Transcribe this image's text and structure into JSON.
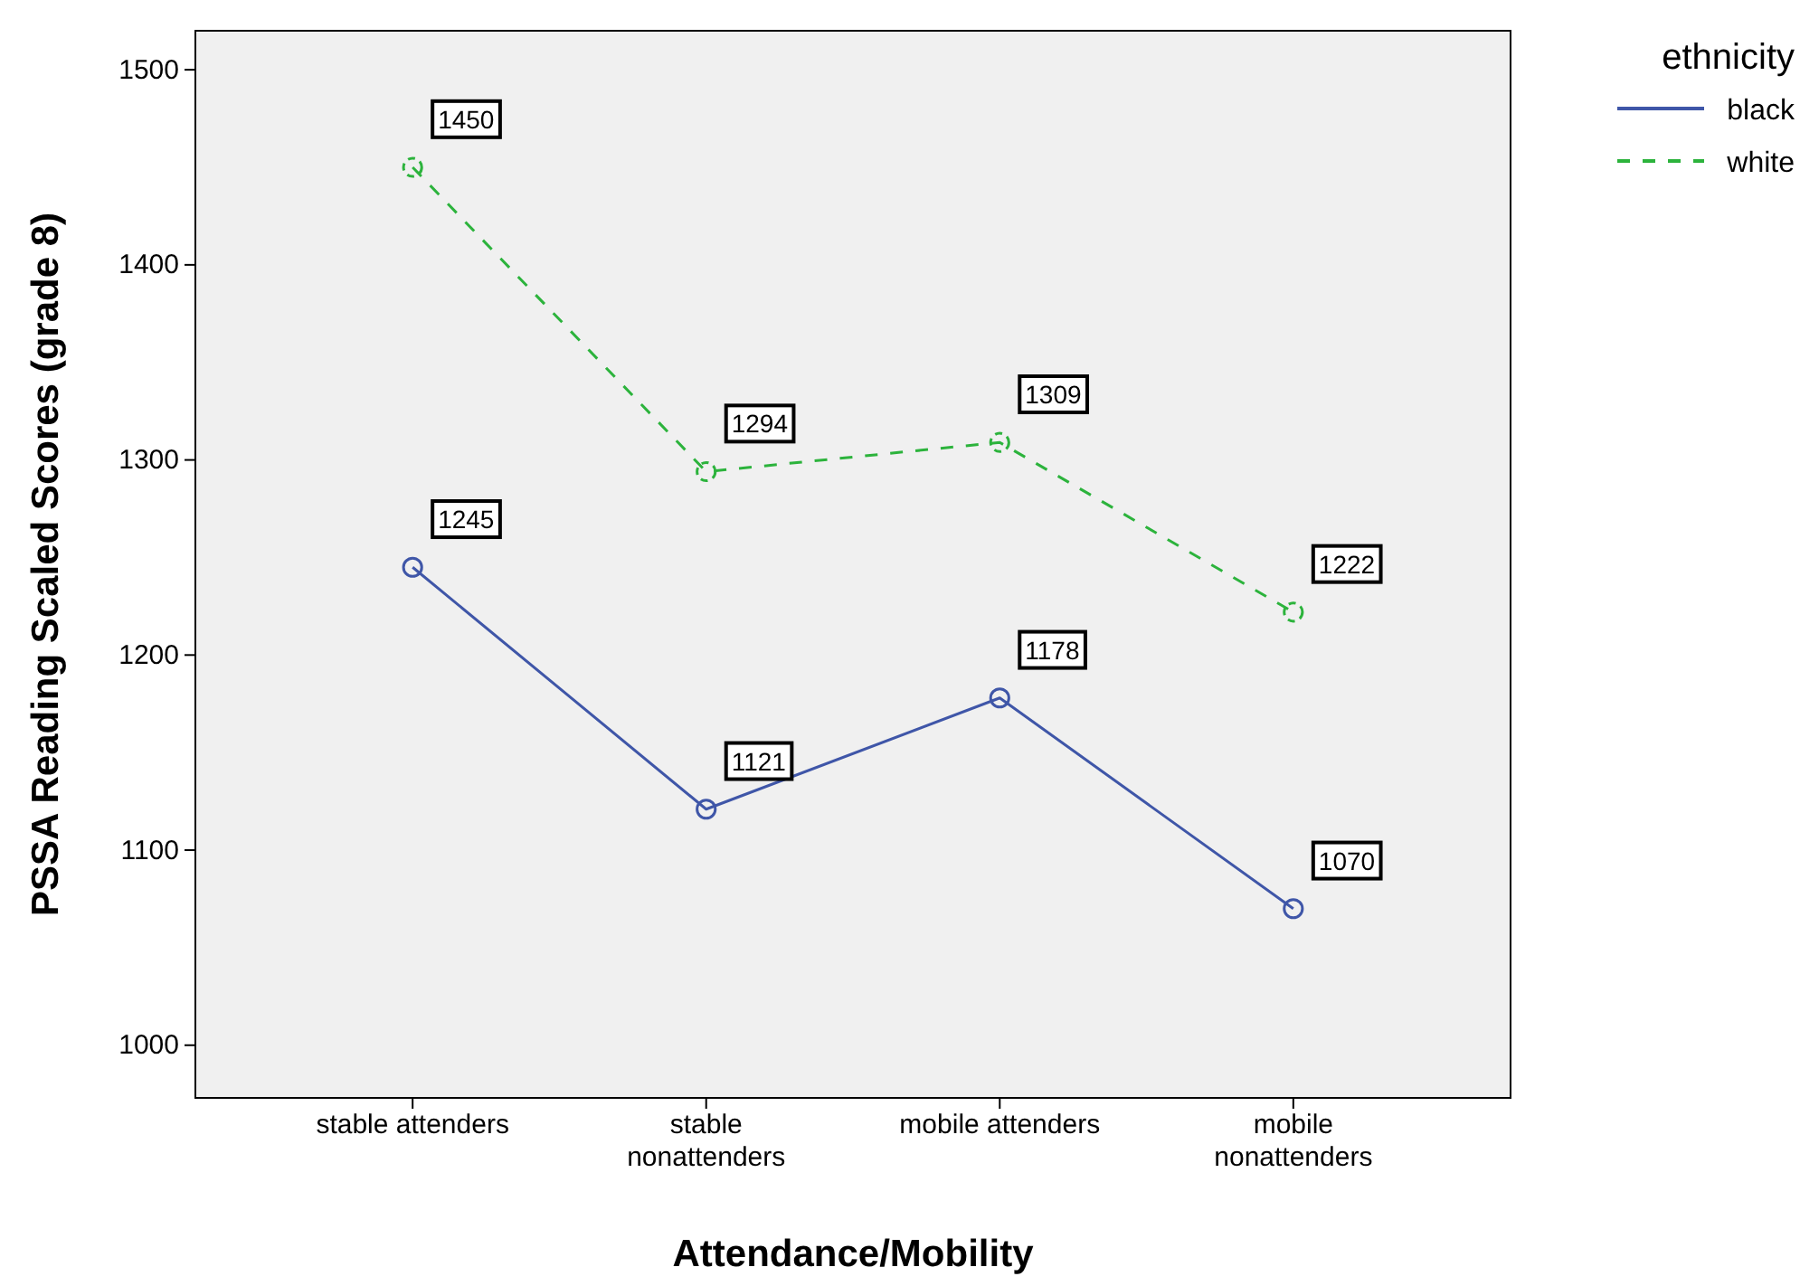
{
  "chart_data": {
    "type": "line",
    "xlabel": "Attendance/Mobility",
    "ylabel": "PSSA Reading Scaled Scores (grade 8)",
    "legend_title": "ethnicity",
    "categories": [
      "stable attenders",
      "stable nonattenders",
      "mobile attenders",
      "mobile nonattenders"
    ],
    "series": [
      {
        "name": "black",
        "color": "#3f56a8",
        "values": [
          1245,
          1121,
          1178,
          1070
        ],
        "line_style": "solid"
      },
      {
        "name": "white",
        "color": "#2cb33c",
        "values": [
          1450,
          1294,
          1309,
          1222
        ],
        "line_style": "dashed"
      }
    ],
    "ylim": [
      973,
      1520
    ],
    "yticks": [
      1000,
      1100,
      1200,
      1300,
      1400,
      1500
    ],
    "marker": "circle",
    "data_labels": true,
    "legend": "top right",
    "grid": false
  }
}
